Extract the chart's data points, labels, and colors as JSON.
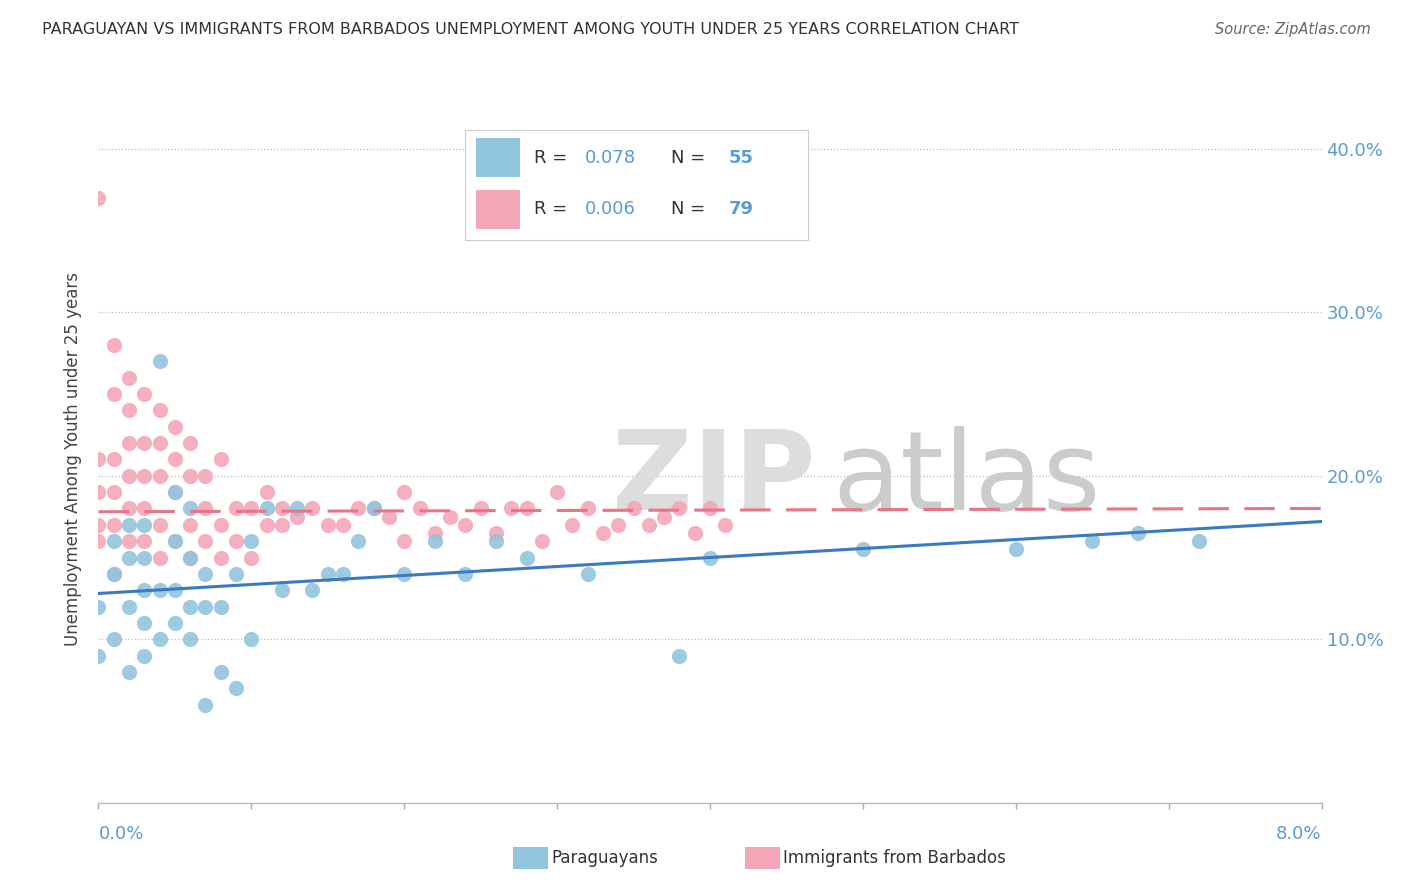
{
  "title": "PARAGUAYAN VS IMMIGRANTS FROM BARBADOS UNEMPLOYMENT AMONG YOUTH UNDER 25 YEARS CORRELATION CHART",
  "source": "Source: ZipAtlas.com",
  "ylabel": "Unemployment Among Youth under 25 years",
  "xlim": [
    0.0,
    0.08
  ],
  "ylim": [
    0.0,
    0.42
  ],
  "yticks": [
    0.1,
    0.2,
    0.3,
    0.4
  ],
  "ytick_labels": [
    "10.0%",
    "20.0%",
    "30.0%",
    "40.0%"
  ],
  "blue_color": "#92c5de",
  "pink_color": "#f4a6b8",
  "blue_line_color": "#3a7bbf",
  "pink_line_color": "#e8748a",
  "label_color": "#5b9bd5",
  "blue_line_x0": 0.0,
  "blue_line_y0": 0.128,
  "blue_line_x1": 0.08,
  "blue_line_y1": 0.172,
  "pink_line_x0": 0.0,
  "pink_line_y0": 0.178,
  "pink_line_x1": 0.08,
  "pink_line_y1": 0.18,
  "blue_points_x": [
    0.0,
    0.0,
    0.001,
    0.001,
    0.001,
    0.002,
    0.002,
    0.002,
    0.002,
    0.003,
    0.003,
    0.003,
    0.003,
    0.003,
    0.004,
    0.004,
    0.004,
    0.005,
    0.005,
    0.005,
    0.005,
    0.006,
    0.006,
    0.006,
    0.006,
    0.007,
    0.007,
    0.007,
    0.008,
    0.008,
    0.009,
    0.009,
    0.01,
    0.01,
    0.011,
    0.012,
    0.013,
    0.014,
    0.015,
    0.016,
    0.017,
    0.018,
    0.02,
    0.022,
    0.024,
    0.026,
    0.028,
    0.032,
    0.038,
    0.04,
    0.05,
    0.06,
    0.065,
    0.068,
    0.072
  ],
  "blue_points_y": [
    0.09,
    0.12,
    0.1,
    0.14,
    0.16,
    0.08,
    0.12,
    0.15,
    0.17,
    0.09,
    0.11,
    0.13,
    0.15,
    0.17,
    0.1,
    0.13,
    0.27,
    0.11,
    0.13,
    0.16,
    0.19,
    0.1,
    0.12,
    0.15,
    0.18,
    0.06,
    0.12,
    0.14,
    0.08,
    0.12,
    0.07,
    0.14,
    0.1,
    0.16,
    0.18,
    0.13,
    0.18,
    0.13,
    0.14,
    0.14,
    0.16,
    0.18,
    0.14,
    0.16,
    0.14,
    0.16,
    0.15,
    0.14,
    0.09,
    0.15,
    0.155,
    0.155,
    0.16,
    0.165,
    0.16
  ],
  "pink_points_x": [
    0.0,
    0.0,
    0.0,
    0.0,
    0.0,
    0.001,
    0.001,
    0.001,
    0.001,
    0.001,
    0.001,
    0.002,
    0.002,
    0.002,
    0.002,
    0.002,
    0.002,
    0.003,
    0.003,
    0.003,
    0.003,
    0.003,
    0.004,
    0.004,
    0.004,
    0.004,
    0.004,
    0.005,
    0.005,
    0.005,
    0.005,
    0.006,
    0.006,
    0.006,
    0.006,
    0.007,
    0.007,
    0.007,
    0.008,
    0.008,
    0.008,
    0.009,
    0.009,
    0.01,
    0.01,
    0.011,
    0.011,
    0.012,
    0.012,
    0.013,
    0.014,
    0.015,
    0.016,
    0.017,
    0.018,
    0.019,
    0.02,
    0.02,
    0.021,
    0.022,
    0.023,
    0.024,
    0.025,
    0.026,
    0.027,
    0.028,
    0.029,
    0.03,
    0.031,
    0.032,
    0.033,
    0.034,
    0.035,
    0.036,
    0.037,
    0.038,
    0.039,
    0.04,
    0.041
  ],
  "pink_points_y": [
    0.16,
    0.17,
    0.19,
    0.21,
    0.37,
    0.14,
    0.17,
    0.19,
    0.21,
    0.25,
    0.28,
    0.16,
    0.18,
    0.2,
    0.22,
    0.24,
    0.26,
    0.16,
    0.18,
    0.2,
    0.22,
    0.25,
    0.15,
    0.17,
    0.2,
    0.22,
    0.24,
    0.16,
    0.19,
    0.21,
    0.23,
    0.15,
    0.17,
    0.2,
    0.22,
    0.16,
    0.18,
    0.2,
    0.15,
    0.17,
    0.21,
    0.16,
    0.18,
    0.15,
    0.18,
    0.17,
    0.19,
    0.17,
    0.18,
    0.175,
    0.18,
    0.17,
    0.17,
    0.18,
    0.18,
    0.175,
    0.19,
    0.16,
    0.18,
    0.165,
    0.175,
    0.17,
    0.18,
    0.165,
    0.18,
    0.18,
    0.16,
    0.19,
    0.17,
    0.18,
    0.165,
    0.17,
    0.18,
    0.17,
    0.175,
    0.18,
    0.165,
    0.18,
    0.17
  ]
}
